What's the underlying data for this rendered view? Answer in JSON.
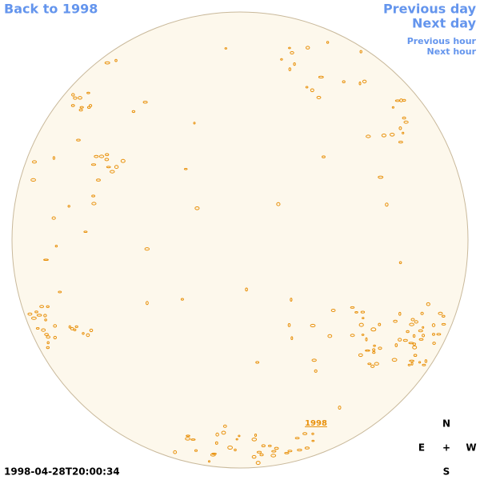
{
  "nav": {
    "back": "Back to 1998",
    "previous_day": "Previous day",
    "next_day": "Next day",
    "previous_hour": "Previous hour",
    "next_hour": "Next hour"
  },
  "disk_label": "1998",
  "compass": {
    "north": "N",
    "east": "E",
    "center": "+",
    "west": "W",
    "south": "S"
  },
  "timestamp": "1998-04-28T20:00:34"
}
